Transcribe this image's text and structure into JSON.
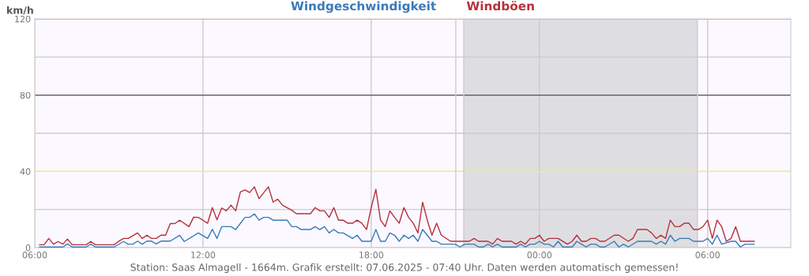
{
  "chart_data": {
    "type": "line",
    "ylabel": "km/h",
    "legend": "top",
    "annotations": [
      "Station: Saas Almagell - 1664m. Grafik erstellt: 07.06.2025 - 07:40 Uhr. Daten werden automatisch gemessen!"
    ],
    "xlim": [
      "2025-06-06T06:00",
      "2025-06-07T08:58"
    ],
    "xticks": [
      {
        "value": "2025-06-06T06:00",
        "label": "06:00"
      },
      {
        "value": "2025-06-06T12:00",
        "label": "12:00"
      },
      {
        "value": "2025-06-06T18:00",
        "label": "18:00"
      },
      {
        "value": "2025-06-07T00:00",
        "label": "00:00"
      },
      {
        "value": "2025-06-07T06:00",
        "label": "06:00"
      }
    ],
    "ylim": [
      0,
      120
    ],
    "yticks": [
      0,
      {
        "value": 20,
        "label": null
      },
      40,
      {
        "value": 60,
        "label": null
      },
      80,
      {
        "value": 100,
        "label": null
      },
      120
    ],
    "grid": true,
    "marker": "none",
    "line_style": "solid",
    "bands": [
      {
        "axis": "x",
        "from": "2025-06-06T21:18",
        "to": "2025-06-07T05:38",
        "color": "#dedee2"
      }
    ],
    "ref_lines": [
      {
        "axis": "y",
        "value": 40,
        "color": "#ffff00"
      },
      {
        "axis": "y",
        "value": 80,
        "color": "#555555"
      },
      {
        "axis": "y",
        "value": 120,
        "color": "#ee82ee"
      },
      {
        "axis": "x",
        "value": "2025-06-06T21:01",
        "color": "#cccccc"
      },
      {
        "axis": "x",
        "value": "2025-06-06T21:18",
        "color": "#cccccc"
      },
      {
        "axis": "x",
        "value": "2025-06-07T05:38",
        "color": "#cccccc"
      }
    ],
    "series": [
      {
        "name": "Windgeschwindigkeit",
        "color": "#3a7ab8",
        "x": [
          "2025-06-06T06:10",
          "2025-06-06T07:00",
          "2025-06-06T07:10",
          "2025-06-06T07:20",
          "2025-06-06T07:50",
          "2025-06-06T08:00",
          "2025-06-06T08:10",
          "2025-06-06T08:50",
          "2025-06-06T09:10",
          "2025-06-06T09:20",
          "2025-06-06T09:30",
          "2025-06-06T09:40",
          "2025-06-06T09:50",
          "2025-06-06T10:00",
          "2025-06-06T10:10",
          "2025-06-06T10:20",
          "2025-06-06T10:30",
          "2025-06-06T10:50",
          "2025-06-06T11:10",
          "2025-06-06T11:20",
          "2025-06-06T11:50",
          "2025-06-06T12:10",
          "2025-06-06T12:20",
          "2025-06-06T12:30",
          "2025-06-06T12:40",
          "2025-06-06T13:00",
          "2025-06-06T13:10",
          "2025-06-06T13:30",
          "2025-06-06T13:40",
          "2025-06-06T13:50",
          "2025-06-06T14:00",
          "2025-06-06T14:10",
          "2025-06-06T14:20",
          "2025-06-06T14:30",
          "2025-06-06T15:00",
          "2025-06-06T15:10",
          "2025-06-06T15:20",
          "2025-06-06T15:30",
          "2025-06-06T15:50",
          "2025-06-06T16:00",
          "2025-06-06T16:10",
          "2025-06-06T16:20",
          "2025-06-06T16:30",
          "2025-06-06T16:40",
          "2025-06-06T16:50",
          "2025-06-06T17:00",
          "2025-06-06T17:20",
          "2025-06-06T17:30",
          "2025-06-06T17:40",
          "2025-06-06T18:00",
          "2025-06-06T18:10",
          "2025-06-06T18:20",
          "2025-06-06T18:30",
          "2025-06-06T18:40",
          "2025-06-06T18:50",
          "2025-06-06T19:00",
          "2025-06-06T19:10",
          "2025-06-06T19:20",
          "2025-06-06T19:30",
          "2025-06-06T19:40",
          "2025-06-06T19:50",
          "2025-06-06T20:00",
          "2025-06-06T20:10",
          "2025-06-06T20:20",
          "2025-06-06T20:30",
          "2025-06-06T21:00",
          "2025-06-06T21:10",
          "2025-06-06T21:20",
          "2025-06-06T21:40",
          "2025-06-06T21:50",
          "2025-06-06T22:00",
          "2025-06-06T22:10",
          "2025-06-06T22:20",
          "2025-06-06T22:30",
          "2025-06-06T22:40",
          "2025-06-06T23:10",
          "2025-06-06T23:20",
          "2025-06-06T23:30",
          "2025-06-06T23:40",
          "2025-06-06T23:50",
          "2025-06-07T00:00",
          "2025-06-07T00:10",
          "2025-06-07T00:20",
          "2025-06-07T00:30",
          "2025-06-07T00:40",
          "2025-06-07T00:50",
          "2025-06-07T01:10",
          "2025-06-07T01:20",
          "2025-06-07T01:30",
          "2025-06-07T01:40",
          "2025-06-07T01:50",
          "2025-06-07T02:00",
          "2025-06-07T02:10",
          "2025-06-07T02:20",
          "2025-06-07T02:40",
          "2025-06-07T02:50",
          "2025-06-07T03:00",
          "2025-06-07T03:10",
          "2025-06-07T03:30",
          "2025-06-07T04:00",
          "2025-06-07T04:10",
          "2025-06-07T04:20",
          "2025-06-07T04:30",
          "2025-06-07T04:40",
          "2025-06-07T04:50",
          "2025-06-07T05:00",
          "2025-06-07T05:20",
          "2025-06-07T05:30",
          "2025-06-07T05:50",
          "2025-06-07T06:00",
          "2025-06-07T06:10",
          "2025-06-07T06:20",
          "2025-06-07T06:30",
          "2025-06-07T06:50",
          "2025-06-07T07:00",
          "2025-06-07T07:10",
          "2025-06-07T07:20",
          "2025-06-07T07:40"
        ],
        "values": [
          0.3,
          0.3,
          1.9,
          0.3,
          0.3,
          1.8,
          0.3,
          0.3,
          3.2,
          1.8,
          1.8,
          3.4,
          1.8,
          3.4,
          3.4,
          1.9,
          3.4,
          3.4,
          6.5,
          3.2,
          7.7,
          4.8,
          9.6,
          4.8,
          11.0,
          11.0,
          9.5,
          15.9,
          15.9,
          17.7,
          14.4,
          15.9,
          15.9,
          14.4,
          14.4,
          11.0,
          11.0,
          9.5,
          9.5,
          11.0,
          9.5,
          11.0,
          7.7,
          9.5,
          7.7,
          7.7,
          4.8,
          6.5,
          3.3,
          3.3,
          9.5,
          3.3,
          3.3,
          7.7,
          6.5,
          3.3,
          6.5,
          4.8,
          6.5,
          3.3,
          9.5,
          6.5,
          3.3,
          3.3,
          1.8,
          1.8,
          0.3,
          1.8,
          1.8,
          0.3,
          0.3,
          1.8,
          0.3,
          1.8,
          0.3,
          0.3,
          1.8,
          0.3,
          1.8,
          1.8,
          3.3,
          1.8,
          1.8,
          0.3,
          3.3,
          0.3,
          0.3,
          3.3,
          1.8,
          0.3,
          1.8,
          1.8,
          0.3,
          0.3,
          3.3,
          0.3,
          1.8,
          0.3,
          3.3,
          3.3,
          1.8,
          3.3,
          1.8,
          6.5,
          3.3,
          4.8,
          4.8,
          3.3,
          3.3,
          4.8,
          1.8,
          6.5,
          1.8,
          3.3,
          3.3,
          0.3,
          1.8,
          1.8
        ]
      },
      {
        "name": "Windböen",
        "color": "#b5303a",
        "x": [
          "2025-06-06T06:10",
          "2025-06-06T06:20",
          "2025-06-06T06:30",
          "2025-06-06T06:40",
          "2025-06-06T06:50",
          "2025-06-06T07:00",
          "2025-06-06T07:10",
          "2025-06-06T07:20",
          "2025-06-06T07:50",
          "2025-06-06T08:00",
          "2025-06-06T08:10",
          "2025-06-06T08:50",
          "2025-06-06T09:00",
          "2025-06-06T09:10",
          "2025-06-06T09:20",
          "2025-06-06T09:40",
          "2025-06-06T09:50",
          "2025-06-06T10:00",
          "2025-06-06T10:10",
          "2025-06-06T10:20",
          "2025-06-06T10:30",
          "2025-06-06T10:40",
          "2025-06-06T10:50",
          "2025-06-06T11:00",
          "2025-06-06T11:10",
          "2025-06-06T11:30",
          "2025-06-06T11:40",
          "2025-06-06T11:50",
          "2025-06-06T12:10",
          "2025-06-06T12:20",
          "2025-06-06T12:30",
          "2025-06-06T12:40",
          "2025-06-06T12:50",
          "2025-06-06T13:00",
          "2025-06-06T13:10",
          "2025-06-06T13:20",
          "2025-06-06T13:30",
          "2025-06-06T13:40",
          "2025-06-06T13:50",
          "2025-06-06T14:00",
          "2025-06-06T14:20",
          "2025-06-06T14:30",
          "2025-06-06T14:40",
          "2025-06-06T14:50",
          "2025-06-06T15:10",
          "2025-06-06T15:20",
          "2025-06-06T15:50",
          "2025-06-06T16:00",
          "2025-06-06T16:10",
          "2025-06-06T16:20",
          "2025-06-06T16:30",
          "2025-06-06T16:40",
          "2025-06-06T16:50",
          "2025-06-06T17:00",
          "2025-06-06T17:10",
          "2025-06-06T17:20",
          "2025-06-06T17:30",
          "2025-06-06T17:40",
          "2025-06-06T17:50",
          "2025-06-06T18:00",
          "2025-06-06T18:10",
          "2025-06-06T18:20",
          "2025-06-06T18:30",
          "2025-06-06T18:40",
          "2025-06-06T18:50",
          "2025-06-06T19:00",
          "2025-06-06T19:10",
          "2025-06-06T19:20",
          "2025-06-06T19:30",
          "2025-06-06T19:40",
          "2025-06-06T19:50",
          "2025-06-06T20:00",
          "2025-06-06T20:10",
          "2025-06-06T20:20",
          "2025-06-06T20:30",
          "2025-06-06T20:50",
          "2025-06-06T21:30",
          "2025-06-06T21:40",
          "2025-06-06T21:50",
          "2025-06-06T22:10",
          "2025-06-06T22:20",
          "2025-06-06T22:30",
          "2025-06-06T22:40",
          "2025-06-06T23:00",
          "2025-06-06T23:10",
          "2025-06-06T23:20",
          "2025-06-06T23:30",
          "2025-06-06T23:40",
          "2025-06-06T23:50",
          "2025-06-07T00:00",
          "2025-06-07T00:10",
          "2025-06-07T00:20",
          "2025-06-07T00:40",
          "2025-06-07T01:00",
          "2025-06-07T01:10",
          "2025-06-07T01:20",
          "2025-06-07T01:30",
          "2025-06-07T01:40",
          "2025-06-07T01:50",
          "2025-06-07T02:00",
          "2025-06-07T02:10",
          "2025-06-07T02:20",
          "2025-06-07T02:40",
          "2025-06-07T02:50",
          "2025-06-07T03:10",
          "2025-06-07T03:20",
          "2025-06-07T03:30",
          "2025-06-07T03:50",
          "2025-06-07T04:00",
          "2025-06-07T04:10",
          "2025-06-07T04:20",
          "2025-06-07T04:30",
          "2025-06-07T04:40",
          "2025-06-07T04:50",
          "2025-06-07T05:00",
          "2025-06-07T05:10",
          "2025-06-07T05:20",
          "2025-06-07T05:30",
          "2025-06-07T05:40",
          "2025-06-07T05:50",
          "2025-06-07T06:00",
          "2025-06-07T06:10",
          "2025-06-07T06:20",
          "2025-06-07T06:30",
          "2025-06-07T06:40",
          "2025-06-07T06:50",
          "2025-06-07T07:00",
          "2025-06-07T07:10",
          "2025-06-07T07:40"
        ],
        "values": [
          1.5,
          1.5,
          4.8,
          1.8,
          3.2,
          1.8,
          4.5,
          1.5,
          1.5,
          3.2,
          1.5,
          1.5,
          3.4,
          4.8,
          4.8,
          7.7,
          4.8,
          6.5,
          4.8,
          4.8,
          6.5,
          6.5,
          12.6,
          12.6,
          14.4,
          11.0,
          16.0,
          15.9,
          12.8,
          21.0,
          14.6,
          20.8,
          19.3,
          22.3,
          19.3,
          29.2,
          30.3,
          28.9,
          31.9,
          25.7,
          31.9,
          23.9,
          25.4,
          22.3,
          19.6,
          17.8,
          17.8,
          21.0,
          19.3,
          19.3,
          15.9,
          21.0,
          14.4,
          14.4,
          12.8,
          12.8,
          14.4,
          12.8,
          9.5,
          21.0,
          30.6,
          14.4,
          11.0,
          19.3,
          15.9,
          12.8,
          21.0,
          15.9,
          12.8,
          7.7,
          23.8,
          14.4,
          6.5,
          12.8,
          6.5,
          3.3,
          3.3,
          4.8,
          3.3,
          3.3,
          1.8,
          4.8,
          3.3,
          3.3,
          1.8,
          3.3,
          1.8,
          4.8,
          4.8,
          6.5,
          3.3,
          4.8,
          4.8,
          1.8,
          3.3,
          6.5,
          3.3,
          3.3,
          4.8,
          4.8,
          3.3,
          3.3,
          6.5,
          6.5,
          3.3,
          4.8,
          9.5,
          9.5,
          7.7,
          4.8,
          6.5,
          4.8,
          14.4,
          11.0,
          11.0,
          12.8,
          12.8,
          9.5,
          9.5,
          11.0,
          14.4,
          4.8,
          14.4,
          11.0,
          3.3,
          4.8,
          11.0,
          3.3,
          3.3
        ]
      }
    ]
  }
}
